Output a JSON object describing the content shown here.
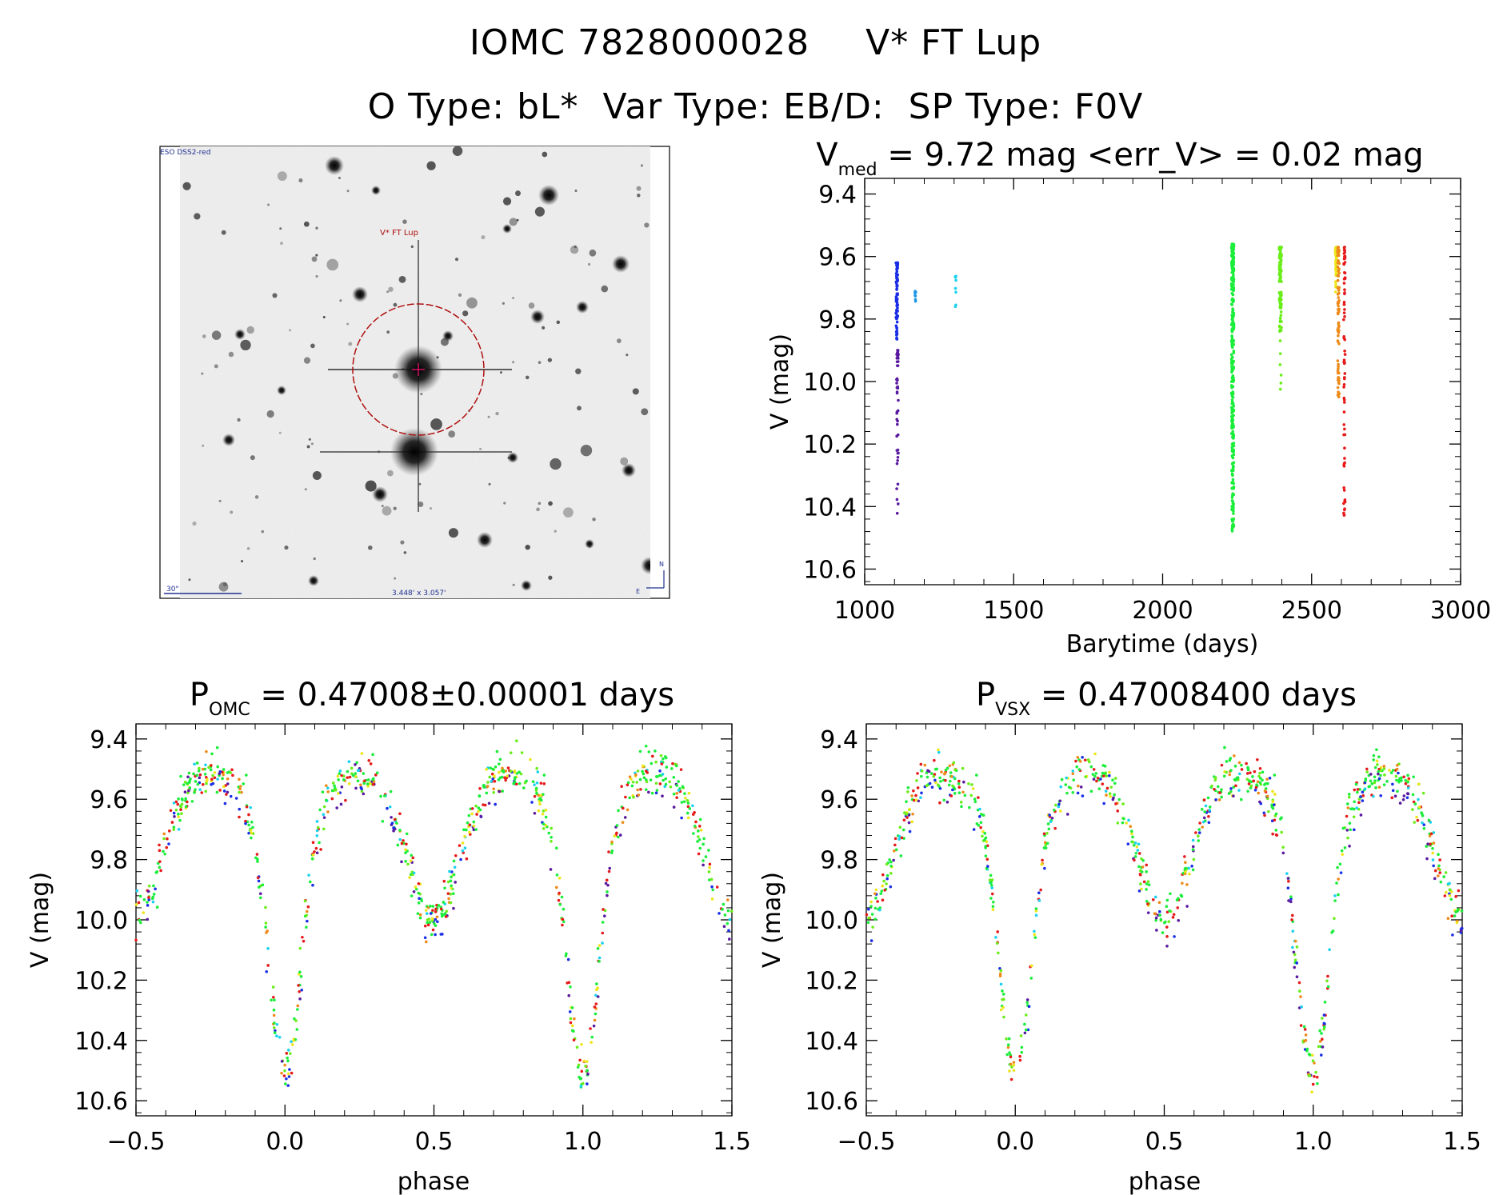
{
  "header": {
    "title_id": "IOMC 7828000028",
    "title_name": "V* FT Lup",
    "otype": "O Type: bL*",
    "vartype": "Var Type: EB/D:",
    "sptype": "SP Type: F0V"
  },
  "finder_image": {
    "survey_label": "ESO DSS2-red",
    "target_label": "V* FT Lup",
    "scale_label": "30\"",
    "fov_label": "3.448' x 3.057'",
    "north_label": "N",
    "east_label": "E"
  },
  "colors": {
    "purple": "#5a1aa0",
    "blue": "#1a2ee6",
    "cyan": "#1ad2ee",
    "sky": "#1a96e6",
    "green": "#1aee3a",
    "lime": "#6aee1a",
    "yellow": "#eee61a",
    "orange": "#ee8a1a",
    "red": "#e61a1a",
    "circle": "#b01010",
    "finder_text": "#203090"
  },
  "chart_data": [
    {
      "type": "scatter",
      "panel": "light_curve",
      "title_main": "V",
      "title_sub": "med",
      "title_rest": " = 9.72 mag <err_V> = 0.02 mag",
      "xlabel": "Barytime (days)",
      "ylabel": "V (mag)",
      "xlim": [
        1000,
        3000
      ],
      "ylim": [
        10.65,
        9.35
      ],
      "y_inverted": true,
      "xticks": [
        1000,
        1500,
        2000,
        2500,
        3000
      ],
      "xtick_labels": [
        "1000",
        "1500",
        "2000",
        "2500",
        "3000"
      ],
      "yticks": [
        9.4,
        9.6,
        9.8,
        10.0,
        10.2,
        10.4,
        10.6
      ],
      "ytick_labels": [
        "9.4",
        "9.6",
        "9.8",
        "10.0",
        "10.2",
        "10.4",
        "10.6"
      ],
      "grid": false,
      "clusters": [
        {
          "x_center": 1108,
          "x_spread": 6,
          "y_min": 9.62,
          "y_max": 9.88,
          "count": 80,
          "color": "blue"
        },
        {
          "x_center": 1110,
          "x_spread": 6,
          "y_min": 9.9,
          "y_max": 10.45,
          "count": 45,
          "color": "purple"
        },
        {
          "x_center": 1170,
          "x_spread": 4,
          "y_min": 9.71,
          "y_max": 9.79,
          "count": 8,
          "color": "sky"
        },
        {
          "x_center": 1305,
          "x_spread": 3,
          "y_min": 9.66,
          "y_max": 9.78,
          "count": 8,
          "color": "cyan"
        },
        {
          "x_center": 2235,
          "x_spread": 8,
          "y_min": 9.56,
          "y_max": 10.48,
          "count": 360,
          "color": "green"
        },
        {
          "x_center": 2395,
          "x_spread": 8,
          "y_min": 9.57,
          "y_max": 9.84,
          "count": 110,
          "color": "lime"
        },
        {
          "x_center": 2396,
          "x_spread": 4,
          "y_min": 9.86,
          "y_max": 10.07,
          "count": 6,
          "color": "lime"
        },
        {
          "x_center": 2582,
          "x_spread": 5,
          "y_min": 9.57,
          "y_max": 9.72,
          "count": 50,
          "color": "yellow"
        },
        {
          "x_center": 2590,
          "x_spread": 6,
          "y_min": 9.57,
          "y_max": 10.05,
          "count": 80,
          "color": "orange"
        },
        {
          "x_center": 2610,
          "x_spread": 5,
          "y_min": 9.57,
          "y_max": 10.43,
          "count": 70,
          "color": "red"
        }
      ]
    },
    {
      "type": "scatter",
      "panel": "phase_omc",
      "title_main": "P",
      "title_sub": "OMC",
      "title_rest": " = 0.47008±0.00001 days",
      "xlabel": "phase",
      "ylabel": "V (mag)",
      "xlim": [
        -0.5,
        1.5
      ],
      "ylim": [
        10.65,
        9.35
      ],
      "y_inverted": true,
      "xticks": [
        -0.5,
        0.0,
        0.5,
        1.0,
        1.5
      ],
      "xtick_labels": [
        "−0.5",
        "0.0",
        "0.5",
        "1.0",
        "1.5"
      ],
      "yticks": [
        9.4,
        9.6,
        9.8,
        10.0,
        10.2,
        10.4,
        10.6
      ],
      "ytick_labels": [
        "9.4",
        "9.6",
        "9.8",
        "10.0",
        "10.2",
        "10.4",
        "10.6"
      ],
      "grid": false,
      "model": {
        "max_mag": 9.6,
        "primary_depth": 0.82,
        "secondary_depth": 0.3,
        "primary_width": 0.052,
        "secondary_width": 0.075,
        "scatter": 0.035,
        "points": 900
      },
      "outliers": [
        {
          "x": -0.13,
          "y": 9.52
        },
        {
          "x": 0.87,
          "y": 9.52
        }
      ]
    },
    {
      "type": "scatter",
      "panel": "phase_vsx",
      "title_main": "P",
      "title_sub": "VSX",
      "title_rest": " = 0.47008400 days",
      "xlabel": "phase",
      "ylabel": "V (mag)",
      "xlim": [
        -0.5,
        1.5
      ],
      "ylim": [
        10.65,
        9.35
      ],
      "y_inverted": true,
      "xticks": [
        -0.5,
        0.0,
        0.5,
        1.0,
        1.5
      ],
      "xtick_labels": [
        "−0.5",
        "0.0",
        "0.5",
        "1.0",
        "1.5"
      ],
      "yticks": [
        9.4,
        9.6,
        9.8,
        10.0,
        10.2,
        10.4,
        10.6
      ],
      "ytick_labels": [
        "9.4",
        "9.6",
        "9.8",
        "10.0",
        "10.2",
        "10.4",
        "10.6"
      ],
      "grid": false,
      "model": {
        "max_mag": 9.6,
        "primary_depth": 0.82,
        "secondary_depth": 0.3,
        "primary_width": 0.052,
        "secondary_width": 0.075,
        "scatter": 0.035,
        "points": 900
      },
      "outliers": [
        {
          "x": -0.13,
          "y": 9.52
        },
        {
          "x": 0.87,
          "y": 9.52
        }
      ]
    }
  ]
}
